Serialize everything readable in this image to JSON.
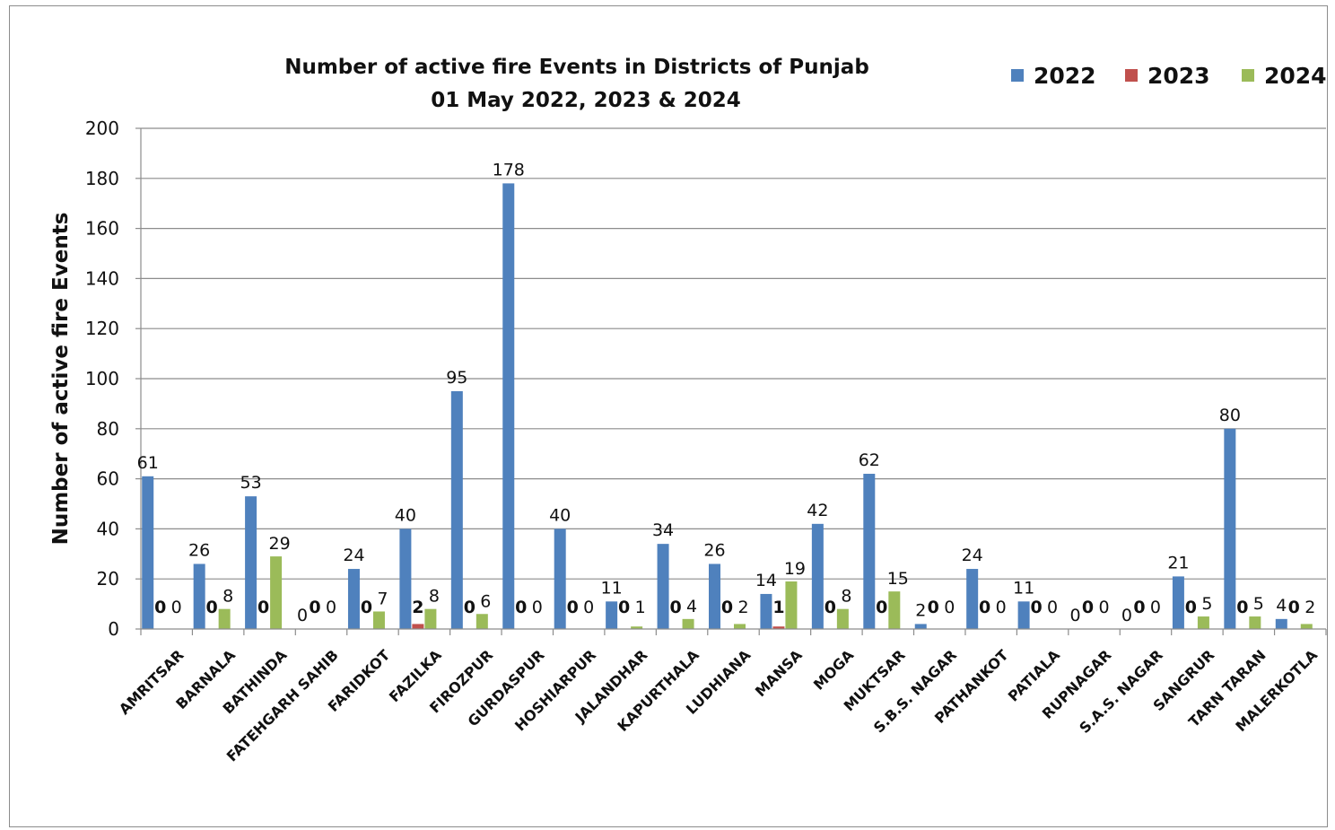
{
  "chart_data": {
    "type": "bar",
    "title": "Number of active fire Events in Districts of Punjab",
    "subtitle": "01 May 2022, 2023 & 2024",
    "xlabel": "",
    "ylabel": "Number of active fire Events",
    "ylim": [
      0,
      200
    ],
    "yticks": [
      0,
      20,
      40,
      60,
      80,
      100,
      120,
      140,
      160,
      180,
      200
    ],
    "grid": "horizontal",
    "legend_position": "top-right",
    "categories": [
      "AMRITSAR",
      "BARNALA",
      "BATHINDA",
      "FATEHGARH SAHIB",
      "FARIDKOT",
      "FAZILKA",
      "FIROZPUR",
      "GURDASPUR",
      "HOSHIARPUR",
      "JALANDHAR",
      "KAPURTHALA",
      "LUDHIANA",
      "MANSA",
      "MOGA",
      "MUKTSAR",
      "S.B.S. NAGAR",
      "PATHANKOT",
      "PATIALA",
      "RUPNAGAR",
      "S.A.S. NAGAR",
      "SANGRUR",
      "TARN TARAN",
      "MALERKOTLA"
    ],
    "series": [
      {
        "name": "2022",
        "color": "#4f81bd",
        "values": [
          61,
          26,
          53,
          0,
          24,
          40,
          95,
          178,
          40,
          11,
          34,
          26,
          14,
          42,
          62,
          2,
          24,
          11,
          0,
          0,
          21,
          80,
          4
        ]
      },
      {
        "name": "2023",
        "color": "#c0504d",
        "values": [
          0,
          0,
          0,
          0,
          0,
          2,
          0,
          0,
          0,
          0,
          0,
          0,
          1,
          0,
          0,
          0,
          0,
          0,
          0,
          0,
          0,
          0,
          0
        ]
      },
      {
        "name": "2024",
        "color": "#9bbb59",
        "values": [
          0,
          8,
          29,
          0,
          7,
          8,
          6,
          0,
          0,
          1,
          4,
          2,
          19,
          8,
          15,
          0,
          0,
          0,
          0,
          0,
          5,
          5,
          2
        ]
      }
    ]
  }
}
